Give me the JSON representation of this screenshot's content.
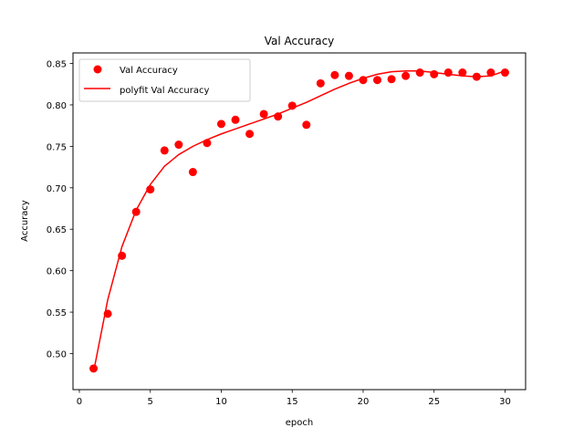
{
  "chart_data": {
    "type": "scatter",
    "title": "Val Accuracy",
    "xlabel": "epoch",
    "ylabel": "Accuracy",
    "xlim": [
      -0.45,
      31.45
    ],
    "ylim": [
      0.4565,
      0.8627
    ],
    "xticks": [
      0,
      5,
      10,
      15,
      20,
      25,
      30
    ],
    "yticks": [
      0.5,
      0.55,
      0.6,
      0.65,
      0.7,
      0.75,
      0.8,
      0.85
    ],
    "grid": false,
    "legend_position": "top-left",
    "colors": {
      "series": "#ff0000"
    },
    "series": [
      {
        "name": "Val Accuracy",
        "kind": "markers",
        "x": [
          1,
          2,
          3,
          4,
          5,
          6,
          7,
          8,
          9,
          10,
          11,
          12,
          13,
          14,
          15,
          16,
          17,
          18,
          19,
          20,
          21,
          22,
          23,
          24,
          25,
          26,
          27,
          28,
          29,
          30
        ],
        "y": [
          0.482,
          0.548,
          0.618,
          0.671,
          0.698,
          0.745,
          0.752,
          0.719,
          0.754,
          0.777,
          0.782,
          0.765,
          0.789,
          0.786,
          0.799,
          0.776,
          0.826,
          0.836,
          0.835,
          0.83,
          0.83,
          0.831,
          0.835,
          0.839,
          0.837,
          0.839,
          0.839,
          0.834,
          0.839,
          0.839
        ]
      },
      {
        "name": "polyfit Val Accuracy",
        "kind": "line",
        "x": [
          1,
          2,
          3,
          4,
          5,
          6,
          7,
          8,
          9,
          10,
          11,
          12,
          13,
          14,
          15,
          16,
          17,
          18,
          19,
          20,
          21,
          22,
          23,
          24,
          25,
          26,
          27,
          28,
          29,
          30
        ],
        "y": [
          0.478,
          0.565,
          0.629,
          0.673,
          0.704,
          0.726,
          0.74,
          0.75,
          0.758,
          0.765,
          0.771,
          0.777,
          0.783,
          0.789,
          0.796,
          0.803,
          0.811,
          0.819,
          0.826,
          0.832,
          0.837,
          0.84,
          0.841,
          0.841,
          0.839,
          0.837,
          0.835,
          0.834,
          0.835,
          0.841
        ]
      }
    ]
  }
}
